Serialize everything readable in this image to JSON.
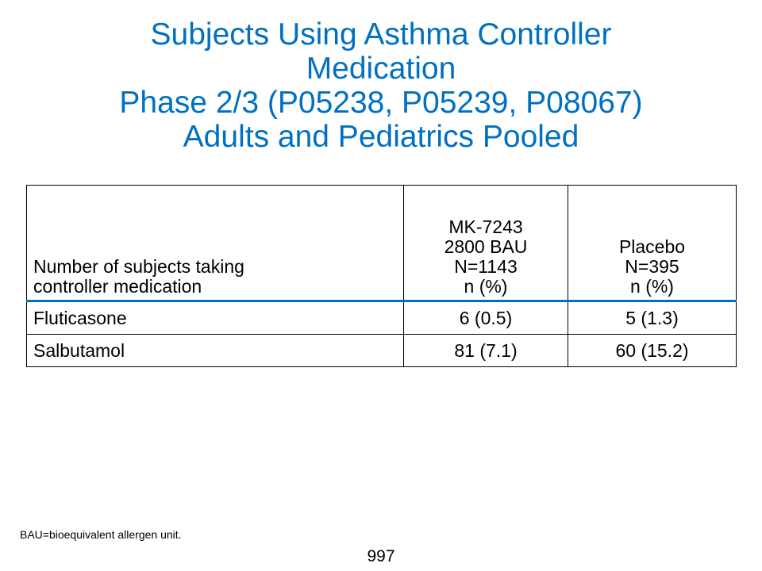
{
  "title": {
    "line1": "Subjects Using Asthma Controller",
    "line2": "Medication",
    "line3": "Phase 2/3 (P05238, P05239, P08067)",
    "line4": "Adults and Pediatrics Pooled"
  },
  "table": {
    "header": {
      "col1": [
        "Number of subjects taking",
        "controller medication"
      ],
      "col2": [
        "MK-7243",
        "2800 BAU",
        "N=1143",
        "n (%)"
      ],
      "col3": [
        "Placebo",
        "N=395",
        "n (%)"
      ]
    },
    "rows": [
      {
        "label": "Fluticasone",
        "mk": "6 (0.5)",
        "placebo": "5 (1.3)"
      },
      {
        "label": "Salbutamol",
        "mk": "81 (7.1)",
        "placebo": "60 (15.2)"
      }
    ]
  },
  "footnote": "BAU=bioequivalent allergen unit.",
  "page_number": "997",
  "colors": {
    "title": "#0070c0",
    "header_rule": "#0070c0"
  }
}
